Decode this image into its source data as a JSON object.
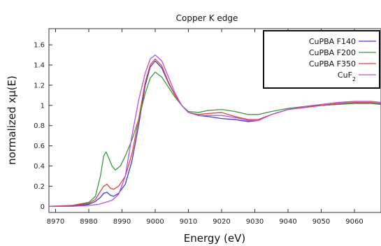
{
  "chart_data": {
    "type": "line",
    "title": "Copper K edge",
    "xlabel": "Energy (eV)",
    "ylabel": "normalized xμ(E)",
    "xlim": [
      8968,
      9068
    ],
    "ylim": [
      -0.06,
      1.76
    ],
    "xticks": [
      8970,
      8980,
      8990,
      9000,
      9010,
      9020,
      9030,
      9040,
      9050,
      9060
    ],
    "yticks": [
      0,
      0.2,
      0.4,
      0.6,
      0.8,
      1,
      1.2,
      1.4,
      1.6
    ],
    "grid": false,
    "legend_position": "top-right",
    "series": [
      {
        "name": "CuPBA F140",
        "name_main": "CuPBA F140",
        "name_sub": "",
        "color": "#3b3bd9",
        "points": [
          [
            8968,
            0.0
          ],
          [
            8975,
            0.005
          ],
          [
            8980,
            0.02
          ],
          [
            8982,
            0.05
          ],
          [
            8983.5,
            0.09
          ],
          [
            8984.5,
            0.13
          ],
          [
            8985.5,
            0.14
          ],
          [
            8986.5,
            0.11
          ],
          [
            8987.5,
            0.1
          ],
          [
            8989,
            0.13
          ],
          [
            8991,
            0.22
          ],
          [
            8993,
            0.45
          ],
          [
            8995,
            0.8
          ],
          [
            8997,
            1.2
          ],
          [
            8998.5,
            1.38
          ],
          [
            9000,
            1.44
          ],
          [
            9002,
            1.37
          ],
          [
            9004,
            1.22
          ],
          [
            9006,
            1.1
          ],
          [
            9008,
            1.0
          ],
          [
            9010,
            0.93
          ],
          [
            9013,
            0.9
          ],
          [
            9016,
            0.89
          ],
          [
            9020,
            0.87
          ],
          [
            9024,
            0.86
          ],
          [
            9028,
            0.84
          ],
          [
            9031,
            0.85
          ],
          [
            9035,
            0.91
          ],
          [
            9040,
            0.96
          ],
          [
            9045,
            0.98
          ],
          [
            9050,
            1.0
          ],
          [
            9055,
            1.01
          ],
          [
            9060,
            1.02
          ],
          [
            9065,
            1.02
          ],
          [
            9068,
            1.01
          ]
        ]
      },
      {
        "name": "CuPBA F200",
        "name_main": "CuPBA F200",
        "name_sub": "",
        "color": "#3a9a3a",
        "points": [
          [
            8968,
            0.0
          ],
          [
            8975,
            0.01
          ],
          [
            8980,
            0.04
          ],
          [
            8982,
            0.1
          ],
          [
            8983.5,
            0.3
          ],
          [
            8984.5,
            0.5
          ],
          [
            8985.2,
            0.54
          ],
          [
            8986,
            0.48
          ],
          [
            8987,
            0.4
          ],
          [
            8988,
            0.36
          ],
          [
            8989.5,
            0.4
          ],
          [
            8991,
            0.5
          ],
          [
            8993,
            0.66
          ],
          [
            8995,
            0.86
          ],
          [
            8997,
            1.12
          ],
          [
            8998.5,
            1.27
          ],
          [
            9000,
            1.33
          ],
          [
            9002,
            1.28
          ],
          [
            9004,
            1.18
          ],
          [
            9006,
            1.08
          ],
          [
            9008,
            1.0
          ],
          [
            9010,
            0.94
          ],
          [
            9013,
            0.93
          ],
          [
            9016,
            0.95
          ],
          [
            9020,
            0.96
          ],
          [
            9024,
            0.94
          ],
          [
            9028,
            0.91
          ],
          [
            9031,
            0.91
          ],
          [
            9035,
            0.94
          ],
          [
            9040,
            0.97
          ],
          [
            9045,
            0.99
          ],
          [
            9050,
            1.0
          ],
          [
            9055,
            1.01
          ],
          [
            9060,
            1.02
          ],
          [
            9065,
            1.02
          ],
          [
            9068,
            1.01
          ]
        ]
      },
      {
        "name": "CuPBA F350",
        "name_main": "CuPBA F350",
        "name_sub": "",
        "color": "#e0413c",
        "points": [
          [
            8968,
            0.0
          ],
          [
            8975,
            0.01
          ],
          [
            8980,
            0.03
          ],
          [
            8982,
            0.07
          ],
          [
            8983.5,
            0.15
          ],
          [
            8984.5,
            0.2
          ],
          [
            8985.5,
            0.22
          ],
          [
            8986.5,
            0.18
          ],
          [
            8987.5,
            0.17
          ],
          [
            8989,
            0.2
          ],
          [
            8991,
            0.3
          ],
          [
            8993,
            0.52
          ],
          [
            8995,
            0.86
          ],
          [
            8997,
            1.23
          ],
          [
            8998.5,
            1.4
          ],
          [
            9000,
            1.46
          ],
          [
            9002,
            1.39
          ],
          [
            9004,
            1.23
          ],
          [
            9006,
            1.1
          ],
          [
            9008,
            1.0
          ],
          [
            9010,
            0.93
          ],
          [
            9013,
            0.91
          ],
          [
            9016,
            0.92
          ],
          [
            9020,
            0.93
          ],
          [
            9024,
            0.89
          ],
          [
            9028,
            0.86
          ],
          [
            9031,
            0.86
          ],
          [
            9035,
            0.91
          ],
          [
            9040,
            0.96
          ],
          [
            9045,
            0.98
          ],
          [
            9050,
            1.0
          ],
          [
            9055,
            1.02
          ],
          [
            9060,
            1.03
          ],
          [
            9065,
            1.03
          ],
          [
            9068,
            1.02
          ]
        ]
      },
      {
        "name": "CuF2",
        "name_main": "CuF",
        "name_sub": "2",
        "color": "#b84ee6",
        "points": [
          [
            8968,
            0.0
          ],
          [
            8975,
            0.0
          ],
          [
            8980,
            0.01
          ],
          [
            8983,
            0.02
          ],
          [
            8985,
            0.04
          ],
          [
            8987,
            0.06
          ],
          [
            8989,
            0.12
          ],
          [
            8991,
            0.3
          ],
          [
            8993,
            0.7
          ],
          [
            8995,
            1.05
          ],
          [
            8997,
            1.32
          ],
          [
            8998.5,
            1.46
          ],
          [
            9000,
            1.5
          ],
          [
            9002,
            1.44
          ],
          [
            9004,
            1.28
          ],
          [
            9006,
            1.12
          ],
          [
            9008,
            1.0
          ],
          [
            9010,
            0.93
          ],
          [
            9013,
            0.9
          ],
          [
            9016,
            0.9
          ],
          [
            9020,
            0.9
          ],
          [
            9024,
            0.88
          ],
          [
            9028,
            0.85
          ],
          [
            9031,
            0.85
          ],
          [
            9035,
            0.91
          ],
          [
            9040,
            0.96
          ],
          [
            9045,
            0.99
          ],
          [
            9050,
            1.01
          ],
          [
            9055,
            1.03
          ],
          [
            9060,
            1.04
          ],
          [
            9065,
            1.04
          ],
          [
            9068,
            1.03
          ]
        ]
      }
    ]
  }
}
